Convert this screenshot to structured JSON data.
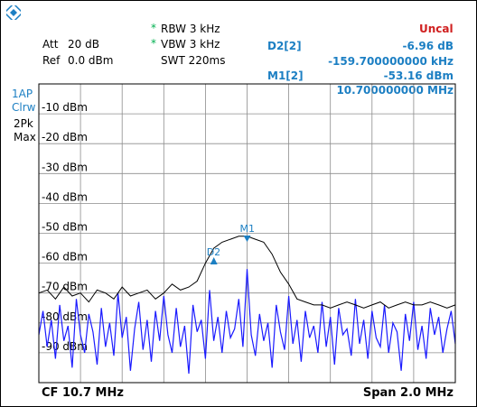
{
  "header": {
    "att_label": "Att",
    "att_value": "20 dB",
    "ref_label": "Ref",
    "ref_value": "0.0 dBm",
    "rbw": "RBW 3 kHz",
    "vbw": "VBW 3 kHz",
    "swt": "SWT 220ms",
    "status": "Uncal"
  },
  "trace_info": [
    "1AP",
    "Clrw",
    "2Pk",
    "Max"
  ],
  "markers": {
    "d2_label": "D2[2]",
    "d2_level": "-6.96 dB",
    "d2_freq": "-159.700000000 kHz",
    "m1_label": "M1[2]",
    "m1_level": "-53.16 dBm",
    "m1_freq": "10.700000000 MHz",
    "m1_tag": "M1",
    "d2_tag": "D2"
  },
  "footer": {
    "center": "CF 10.7 MHz",
    "span": "Span 2.0 MHz"
  },
  "colors": {
    "trace1": "#1a1aff",
    "trace2": "#000000",
    "marker": "#1c7fc3",
    "grid": "#8c8c8c",
    "status": "#d02020"
  },
  "chart_data": {
    "type": "line",
    "xlabel": "",
    "ylabel": "",
    "x_unit": "MHz",
    "xlim": [
      9.7,
      11.7
    ],
    "ylim": [
      -100,
      0
    ],
    "grid": true,
    "y_ticks": [
      {
        "value": -10,
        "label": "-10 dBm"
      },
      {
        "value": -20,
        "label": "-20 dBm"
      },
      {
        "value": -30,
        "label": "-30 dBm"
      },
      {
        "value": -40,
        "label": "-40 dBm"
      },
      {
        "value": -50,
        "label": "-50 dBm"
      },
      {
        "value": -60,
        "label": "-60 dBm"
      },
      {
        "value": -70,
        "label": "-70 dBm"
      },
      {
        "value": -80,
        "label": "-80 dBm"
      },
      {
        "value": -90,
        "label": "-90 dBm"
      }
    ],
    "series": [
      {
        "color": "#1a1aff",
        "x": [
          9.7,
          9.72,
          9.74,
          9.76,
          9.78,
          9.8,
          9.82,
          9.84,
          9.86,
          9.88,
          9.9,
          9.92,
          9.94,
          9.96,
          9.98,
          10.0,
          10.02,
          10.04,
          10.06,
          10.08,
          10.1,
          10.12,
          10.14,
          10.16,
          10.18,
          10.2,
          10.22,
          10.24,
          10.26,
          10.28,
          10.3,
          10.32,
          10.34,
          10.36,
          10.38,
          10.4,
          10.42,
          10.44,
          10.46,
          10.48,
          10.5,
          10.52,
          10.54,
          10.56,
          10.58,
          10.6,
          10.62,
          10.64,
          10.66,
          10.68,
          10.7,
          10.72,
          10.74,
          10.76,
          10.78,
          10.8,
          10.82,
          10.84,
          10.86,
          10.88,
          10.9,
          10.92,
          10.94,
          10.96,
          10.98,
          11.0,
          11.02,
          11.04,
          11.06,
          11.08,
          11.1,
          11.12,
          11.14,
          11.16,
          11.18,
          11.2,
          11.22,
          11.24,
          11.26,
          11.28,
          11.3,
          11.32,
          11.34,
          11.36,
          11.38,
          11.4,
          11.42,
          11.44,
          11.46,
          11.48,
          11.5,
          11.52,
          11.54,
          11.56,
          11.58,
          11.6,
          11.62,
          11.64,
          11.66,
          11.68,
          11.7
        ],
        "y": [
          -84,
          -76,
          -88,
          -79,
          -92,
          -74,
          -86,
          -81,
          -95,
          -72,
          -84,
          -90,
          -77,
          -83,
          -94,
          -75,
          -88,
          -80,
          -91,
          -70,
          -85,
          -78,
          -96,
          -82,
          -73,
          -89,
          -79,
          -93,
          -76,
          -86,
          -71,
          -84,
          -90,
          -75,
          -88,
          -81,
          -97,
          -74,
          -83,
          -79,
          -92,
          -69,
          -86,
          -78,
          -90,
          -76,
          -85,
          -82,
          -72,
          -88,
          -62,
          -84,
          -91,
          -77,
          -86,
          -80,
          -95,
          -74,
          -83,
          -89,
          -71,
          -87,
          -79,
          -93,
          -76,
          -85,
          -81,
          -90,
          -73,
          -88,
          -78,
          -94,
          -75,
          -84,
          -82,
          -91,
          -72,
          -87,
          -79,
          -92,
          -76,
          -85,
          -88,
          -74,
          -90,
          -80,
          -83,
          -96,
          -77,
          -86,
          -73,
          -89,
          -81,
          -92,
          -75,
          -84,
          -78,
          -90,
          -82,
          -76,
          -87
        ]
      },
      {
        "color": "#000000",
        "x": [
          9.7,
          9.74,
          9.78,
          9.82,
          9.86,
          9.9,
          9.94,
          9.98,
          10.02,
          10.06,
          10.1,
          10.14,
          10.18,
          10.22,
          10.26,
          10.3,
          10.34,
          10.38,
          10.42,
          10.46,
          10.5,
          10.54,
          10.58,
          10.62,
          10.66,
          10.7,
          10.74,
          10.78,
          10.82,
          10.86,
          10.9,
          10.94,
          10.98,
          11.02,
          11.06,
          11.1,
          11.14,
          11.18,
          11.22,
          11.26,
          11.3,
          11.34,
          11.38,
          11.42,
          11.46,
          11.5,
          11.54,
          11.58,
          11.62,
          11.66,
          11.7
        ],
        "y": [
          -70,
          -69,
          -72,
          -68,
          -71,
          -70,
          -73,
          -69,
          -70,
          -72,
          -68,
          -71,
          -70,
          -69,
          -72,
          -70,
          -67,
          -69,
          -68,
          -66,
          -60,
          -55,
          -53,
          -52,
          -51,
          -51,
          -52,
          -53,
          -57,
          -63,
          -67,
          -72,
          -73,
          -74,
          -74,
          -75,
          -74,
          -73,
          -74,
          -75,
          -74,
          -73,
          -75,
          -74,
          -73,
          -74,
          -74,
          -73,
          -74,
          -75,
          -74
        ]
      }
    ],
    "markers": [
      {
        "name": "M1",
        "x": 10.7,
        "y": -53.16
      },
      {
        "name": "D2",
        "x": 10.5403,
        "y": -60.12
      }
    ]
  }
}
